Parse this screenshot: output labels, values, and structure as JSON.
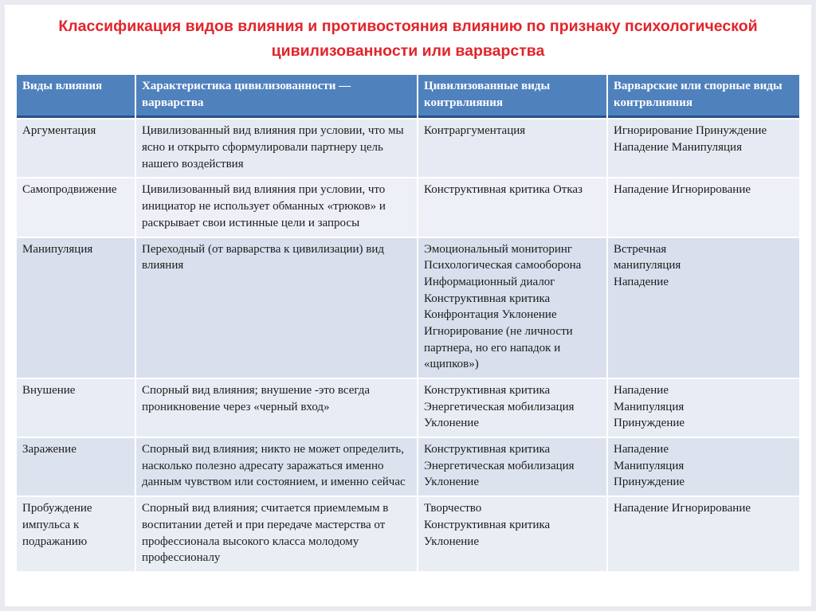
{
  "title": "Классификация видов влияния и противостояния влиянию по признаку психологической цивилизованности или варварства",
  "colors": {
    "title_text": "#e2242b",
    "header_bg": "#4f81bd",
    "header_text": "#ffffff",
    "header_underline": "#27528a"
  },
  "table": {
    "headers": [
      "Виды влияния",
      "Характеристика цивилизованности — варварства",
      "Цивилизованные виды контрвлияния",
      "Варварские или спорные виды контрвлияния"
    ],
    "row_shades": [
      "#e6eaf3",
      "#edf0f6",
      "#d9dfec",
      "#e8ecf4",
      "#dde3ee",
      "#e9edf4"
    ],
    "rows": [
      [
        "Аргументация",
        "Цивилизованный вид влияния при условии, что мы ясно и открыто сформулировали партнеру цель нашего воздействия",
        "Контраргументация",
        "Игнорирование Принуждение Нападение Манипуляция"
      ],
      [
        "Самопродвижение",
        "Цивилизованный вид влияния при условии, что инициатор не использует обманных «трюков» и раскрывает свои истинные цели и запросы",
        "Конструктивная критика Отказ",
        "Нападение Игнорирование"
      ],
      [
        "Манипуляция",
        "Переходный (от варварства к цивилизации) вид влияния",
        "Эмоциональный мониторинг Психологическая самооборона Информационный диалог Конструктивная критика Конфронтация Уклонение Игнорирование (не личности партнера, но его нападок и «щипков»)",
        "Встречная\nманипуляция\nНападение"
      ],
      [
        "Внушение",
        "Спорный вид влияния; внушение -это всегда проникновение через «черный вход»",
        "Конструктивная критика\nЭнергетическая мобилизация\nУклонение",
        "Нападение\nМанипуляция\nПринуждение"
      ],
      [
        "Заражение",
        "Спорный вид влияния; никто не может определить, насколько полезно адресату заражаться именно данным чувством или состоянием, и именно сейчас",
        "Конструктивная критика\nЭнергетическая мобилизация\nУклонение",
        "Нападение\nМанипуляция\nПринуждение"
      ],
      [
        "Пробуждение импульса к подражанию",
        "Спорный вид влияния; считается приемлемым в воспитании детей и при передаче мастерства от профессионала высокого класса молодому профессионалу",
        "Творчество\nКонструктивная критика\nУклонение",
        "Нападение Игнорирование"
      ]
    ]
  }
}
